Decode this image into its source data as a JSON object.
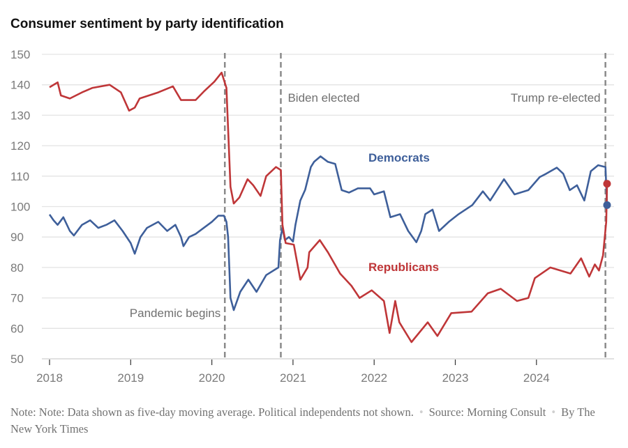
{
  "chart_data": {
    "type": "line",
    "title": "Consumer sentiment by party identification",
    "xlabel": "",
    "ylabel": "",
    "xlim": [
      2017.9,
      2024.95
    ],
    "ylim": [
      50,
      150
    ],
    "grid": true,
    "x_ticks": [
      "2018",
      "2019",
      "2020",
      "2021",
      "2022",
      "2023",
      "2024"
    ],
    "y_ticks": [
      50,
      60,
      70,
      80,
      90,
      100,
      110,
      120,
      130,
      140,
      150
    ],
    "annotations": [
      {
        "label": "Pandemic begins",
        "x": 2020.16
      },
      {
        "label": "Biden elected",
        "x": 2020.85
      },
      {
        "label": "Trump re-elected",
        "x": 2024.85
      }
    ],
    "series": [
      {
        "name": "Democrats",
        "color": "#3e5f9a",
        "points": [
          [
            2018.0,
            97.4
          ],
          [
            2018.05,
            95.5
          ],
          [
            2018.1,
            94
          ],
          [
            2018.17,
            96.5
          ],
          [
            2018.25,
            92
          ],
          [
            2018.3,
            90.5
          ],
          [
            2018.4,
            94
          ],
          [
            2018.5,
            95.5
          ],
          [
            2018.6,
            93
          ],
          [
            2018.7,
            94
          ],
          [
            2018.8,
            95.5
          ],
          [
            2018.9,
            92
          ],
          [
            2019.0,
            88
          ],
          [
            2019.05,
            84.5
          ],
          [
            2019.12,
            90
          ],
          [
            2019.2,
            93
          ],
          [
            2019.34,
            95
          ],
          [
            2019.45,
            92
          ],
          [
            2019.55,
            94
          ],
          [
            2019.62,
            90
          ],
          [
            2019.65,
            87
          ],
          [
            2019.72,
            90
          ],
          [
            2019.8,
            91
          ],
          [
            2019.9,
            93
          ],
          [
            2020.0,
            95
          ],
          [
            2020.08,
            97
          ],
          [
            2020.15,
            97
          ],
          [
            2020.18,
            95
          ],
          [
            2020.2,
            90
          ],
          [
            2020.23,
            70
          ],
          [
            2020.27,
            66
          ],
          [
            2020.35,
            72
          ],
          [
            2020.45,
            76
          ],
          [
            2020.55,
            72
          ],
          [
            2020.67,
            77.5
          ],
          [
            2020.82,
            80
          ],
          [
            2020.84,
            89
          ],
          [
            2020.87,
            93
          ],
          [
            2020.9,
            89
          ],
          [
            2020.95,
            90
          ],
          [
            2021.0,
            88.5
          ],
          [
            2021.03,
            94
          ],
          [
            2021.09,
            102
          ],
          [
            2021.15,
            105.5
          ],
          [
            2021.22,
            113
          ],
          [
            2021.26,
            114.7
          ],
          [
            2021.34,
            116.5
          ],
          [
            2021.43,
            114.7
          ],
          [
            2021.52,
            114
          ],
          [
            2021.6,
            105.4
          ],
          [
            2021.69,
            104.6
          ],
          [
            2021.8,
            106
          ],
          [
            2021.95,
            106
          ],
          [
            2022.0,
            104
          ],
          [
            2022.12,
            105
          ],
          [
            2022.2,
            96.5
          ],
          [
            2022.32,
            97.5
          ],
          [
            2022.42,
            92
          ],
          [
            2022.52,
            88.3
          ],
          [
            2022.58,
            92
          ],
          [
            2022.63,
            97.5
          ],
          [
            2022.72,
            99
          ],
          [
            2022.8,
            92
          ],
          [
            2022.92,
            95
          ],
          [
            2023.04,
            97.5
          ],
          [
            2023.21,
            100.5
          ],
          [
            2023.34,
            105
          ],
          [
            2023.43,
            102
          ],
          [
            2023.6,
            109
          ],
          [
            2023.73,
            104
          ],
          [
            2023.9,
            105.4
          ],
          [
            2024.04,
            109.7
          ],
          [
            2024.12,
            110.8
          ],
          [
            2024.25,
            112.8
          ],
          [
            2024.33,
            110.8
          ],
          [
            2024.41,
            105.4
          ],
          [
            2024.5,
            107
          ],
          [
            2024.59,
            102
          ],
          [
            2024.67,
            111.6
          ],
          [
            2024.76,
            113.6
          ],
          [
            2024.85,
            113
          ],
          [
            2024.87,
            100.5
          ]
        ]
      },
      {
        "name": "Republicans",
        "color": "#bf3638",
        "points": [
          [
            2018.0,
            139.2
          ],
          [
            2018.1,
            140.8
          ],
          [
            2018.14,
            136.5
          ],
          [
            2018.25,
            135.5
          ],
          [
            2018.4,
            137.5
          ],
          [
            2018.53,
            139
          ],
          [
            2018.74,
            140
          ],
          [
            2018.88,
            137.5
          ],
          [
            2018.98,
            131.5
          ],
          [
            2019.05,
            132.5
          ],
          [
            2019.11,
            135.5
          ],
          [
            2019.34,
            137.5
          ],
          [
            2019.52,
            139.5
          ],
          [
            2019.62,
            135
          ],
          [
            2019.8,
            135
          ],
          [
            2019.91,
            138
          ],
          [
            2020.03,
            141
          ],
          [
            2020.12,
            144
          ],
          [
            2020.18,
            139
          ],
          [
            2020.23,
            106.5
          ],
          [
            2020.27,
            101
          ],
          [
            2020.34,
            103
          ],
          [
            2020.44,
            109
          ],
          [
            2020.51,
            107
          ],
          [
            2020.6,
            103.5
          ],
          [
            2020.67,
            110
          ],
          [
            2020.79,
            113
          ],
          [
            2020.85,
            112
          ],
          [
            2020.87,
            94
          ],
          [
            2020.91,
            88
          ],
          [
            2021.01,
            87.5
          ],
          [
            2021.09,
            76
          ],
          [
            2021.18,
            80
          ],
          [
            2021.2,
            85
          ],
          [
            2021.33,
            89
          ],
          [
            2021.43,
            85
          ],
          [
            2021.58,
            78
          ],
          [
            2021.72,
            74
          ],
          [
            2021.82,
            70
          ],
          [
            2021.97,
            72.5
          ],
          [
            2022.12,
            69
          ],
          [
            2022.19,
            58.5
          ],
          [
            2022.26,
            69
          ],
          [
            2022.31,
            62
          ],
          [
            2022.46,
            55.5
          ],
          [
            2022.66,
            62
          ],
          [
            2022.78,
            57.5
          ],
          [
            2022.95,
            65
          ],
          [
            2023.2,
            65.5
          ],
          [
            2023.4,
            71.5
          ],
          [
            2023.56,
            73
          ],
          [
            2023.76,
            69
          ],
          [
            2023.9,
            70
          ],
          [
            2023.98,
            76.5
          ],
          [
            2024.17,
            80
          ],
          [
            2024.42,
            78
          ],
          [
            2024.55,
            83
          ],
          [
            2024.65,
            77
          ],
          [
            2024.72,
            81
          ],
          [
            2024.77,
            79
          ],
          [
            2024.82,
            84
          ],
          [
            2024.86,
            95
          ],
          [
            2024.87,
            107.5
          ]
        ]
      }
    ]
  },
  "footer": {
    "note": "Note: Note: Data shown as five-day moving average. Political independents not shown.",
    "source": "Source: Morning Consult",
    "byline": "By The New York Times"
  }
}
